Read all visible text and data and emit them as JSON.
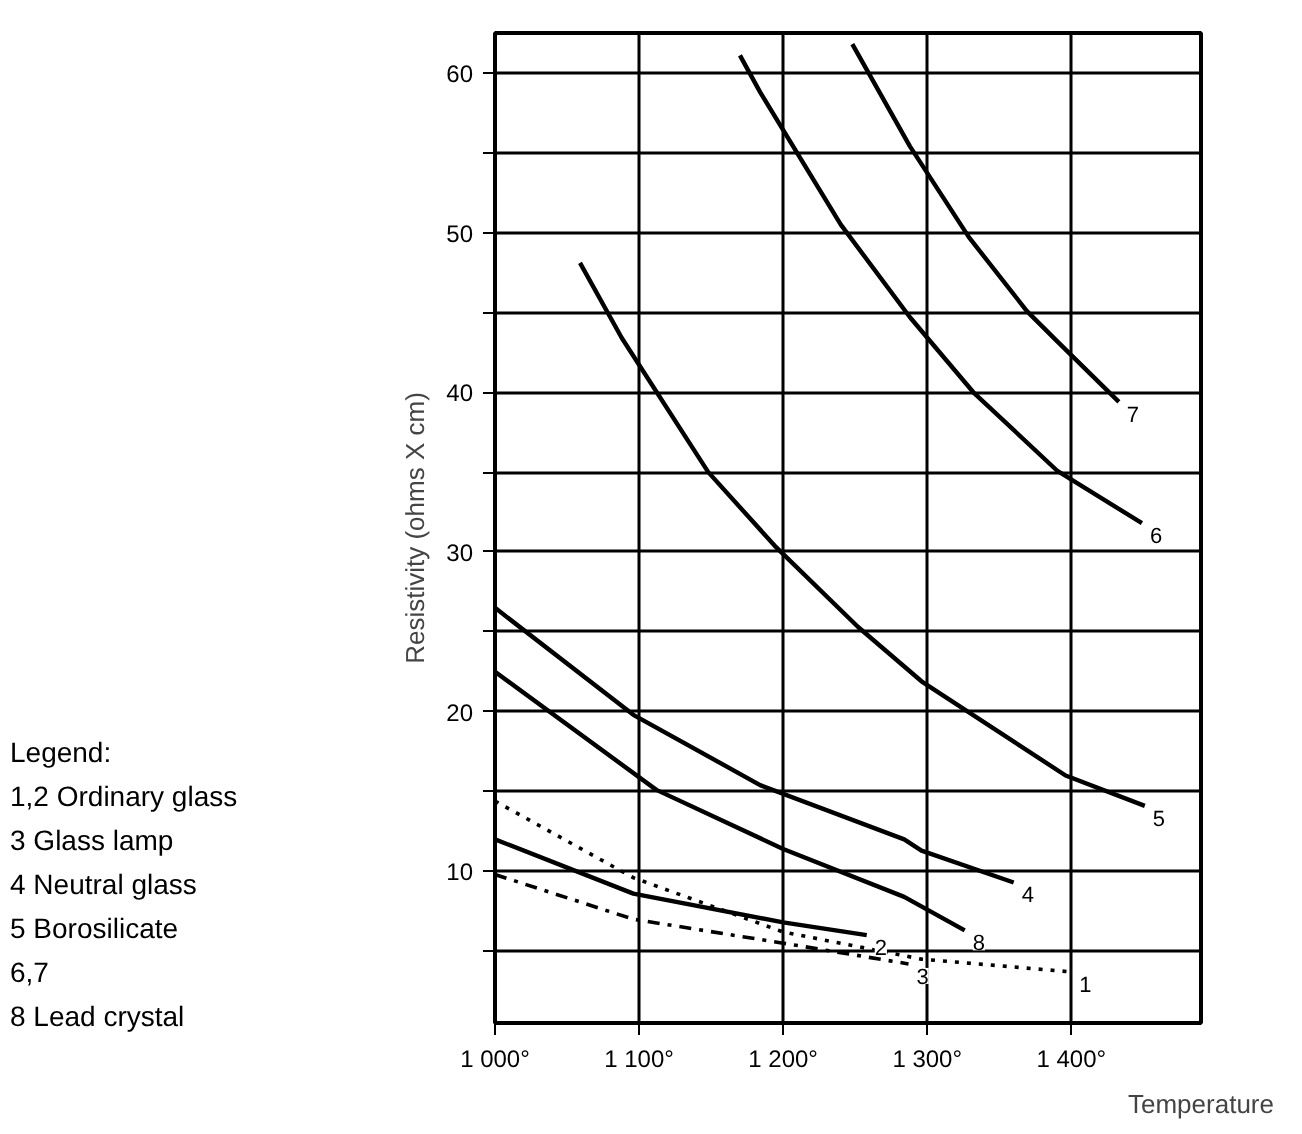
{
  "chart_data": {
    "type": "line",
    "xlabel": "Temperature",
    "ylabel": "Resistivity (ohms X cm)",
    "xlim": [
      1000,
      1490
    ],
    "ylim": [
      0.5,
      62.5
    ],
    "xticks": [
      {
        "value": 1000,
        "label": "1 000°"
      },
      {
        "value": 1100,
        "label": "1 100°"
      },
      {
        "value": 1200,
        "label": "1 200°"
      },
      {
        "value": 1300,
        "label": "1 300°"
      },
      {
        "value": 1400,
        "label": "1 400°"
      }
    ],
    "yticks": [
      {
        "value": 5,
        "label": null
      },
      10,
      {
        "value": 15,
        "label": null
      },
      20,
      {
        "value": 25,
        "label": null
      },
      30,
      {
        "value": 35,
        "label": null
      },
      40,
      {
        "value": 45,
        "label": null
      },
      50,
      {
        "value": 55,
        "label": null
      },
      60
    ],
    "grid": true,
    "marker": "none",
    "series": [
      {
        "name": "7",
        "color": "#000000",
        "line_style": "solid",
        "x": [
          1248,
          1288,
          1329,
          1369,
          1389,
          1433
        ],
        "values": [
          61.8,
          55.4,
          49.7,
          45.1,
          43.3,
          39.4
        ]
      },
      {
        "name": "6",
        "color": "#000000",
        "line_style": "solid",
        "x": [
          1170,
          1184,
          1240,
          1288,
          1332,
          1390,
          1449
        ],
        "values": [
          61.1,
          58.8,
          50.5,
          44.7,
          40.0,
          35.1,
          31.8
        ]
      },
      {
        "name": "5",
        "color": "#000000",
        "line_style": "solid",
        "x": [
          1059,
          1088,
          1148,
          1194,
          1252,
          1296,
          1396,
          1451
        ],
        "values": [
          48.1,
          43.4,
          35.0,
          30.4,
          25.3,
          21.9,
          16.0,
          14.1
        ]
      },
      {
        "name": "4",
        "color": "#000000",
        "line_style": "solid",
        "x": [
          1000,
          1096,
          1184,
          1284,
          1296,
          1360
        ],
        "values": [
          26.5,
          19.8,
          15.4,
          12.0,
          11.3,
          9.3
        ]
      },
      {
        "name": "8",
        "color": "#000000",
        "line_style": "solid",
        "x": [
          1000,
          1112,
          1200,
          1284,
          1326
        ],
        "values": [
          22.5,
          15.1,
          11.4,
          8.4,
          6.3
        ]
      },
      {
        "name": "2",
        "color": "#000000",
        "line_style": "solid",
        "x": [
          1000,
          1096,
          1200,
          1258
        ],
        "values": [
          12.0,
          8.6,
          6.8,
          6.0
        ]
      },
      {
        "name": "1",
        "color": "#000000",
        "line_style": "dotted",
        "x": [
          1000,
          1096,
          1200,
          1296,
          1400
        ],
        "values": [
          14.4,
          9.6,
          6.2,
          4.5,
          3.7
        ]
      },
      {
        "name": "3",
        "color": "#000000",
        "line_style": "dashed",
        "x": [
          1000,
          1096,
          1200,
          1287
        ],
        "values": [
          9.8,
          7.0,
          5.5,
          4.2
        ]
      }
    ],
    "annotations": [
      "Legend:",
      "1,2 Ordinary glass",
      "3 Glass lamp",
      "4 Neutral glass",
      "5 Borosilicate",
      "6,7",
      "8 Lead crystal"
    ]
  }
}
